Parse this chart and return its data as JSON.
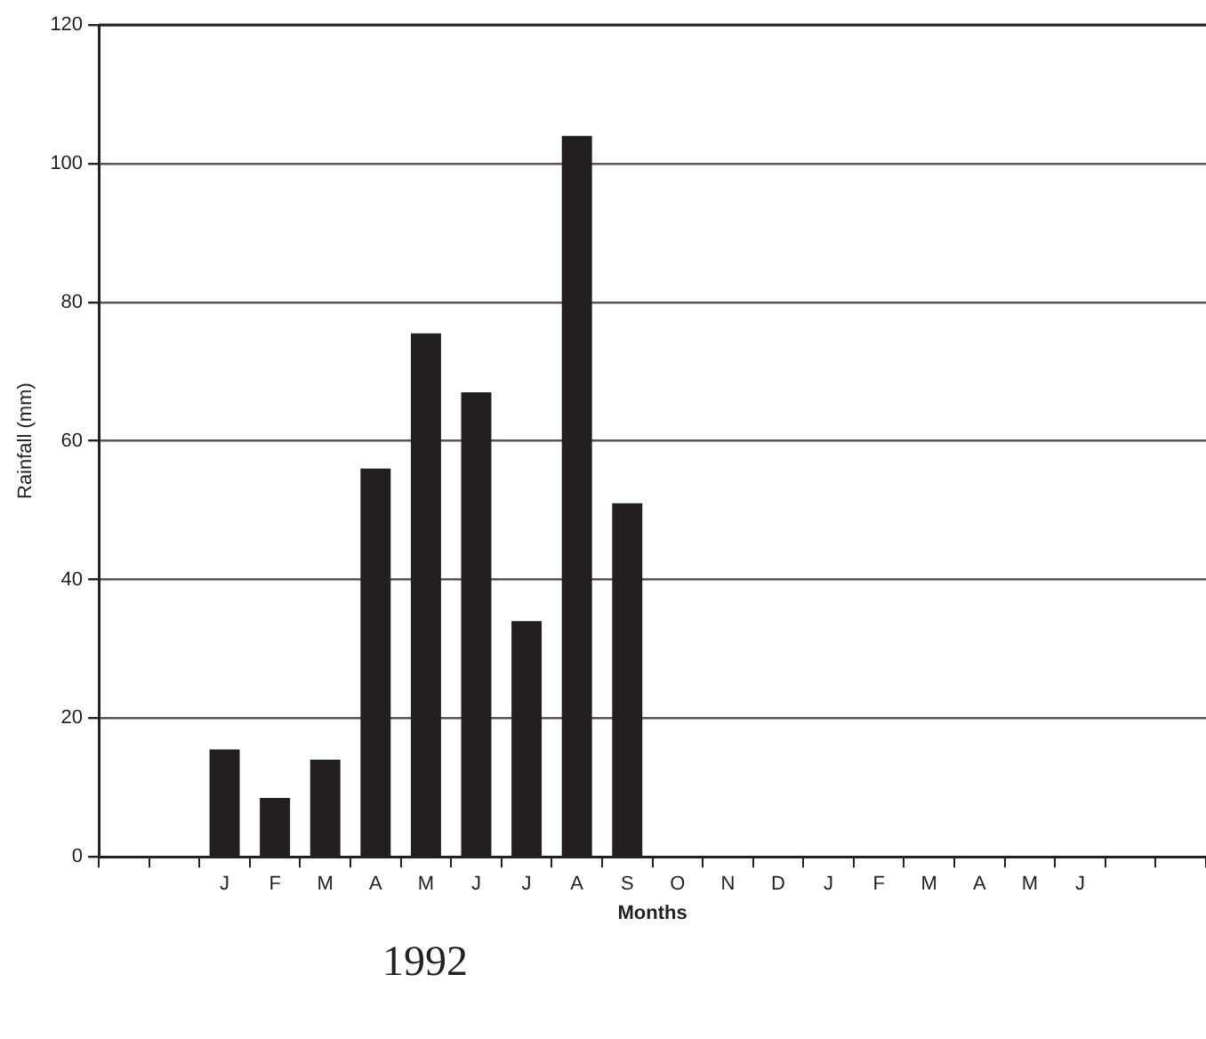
{
  "chart_data": {
    "type": "bar",
    "xlabel": "Months",
    "ylabel": "Rainfall (mm)",
    "categories": [
      null,
      null,
      "J",
      "F",
      "M",
      "A",
      "M",
      "J",
      "J",
      "A",
      "S",
      "O",
      "N",
      "D",
      "J",
      "F",
      "M",
      "A",
      "M",
      "J",
      null,
      null
    ],
    "values": [
      null,
      null,
      15.5,
      8.5,
      14,
      56,
      75.5,
      67,
      34,
      104,
      51,
      null,
      null,
      null,
      null,
      null,
      null,
      null,
      null,
      null,
      null,
      null
    ],
    "color": "#231f20",
    "ylim": [
      0,
      120
    ],
    "yticks": [
      0,
      20,
      40,
      60,
      80,
      100,
      120
    ],
    "grid": "y",
    "legend": false,
    "annotations": [
      "1992"
    ]
  }
}
